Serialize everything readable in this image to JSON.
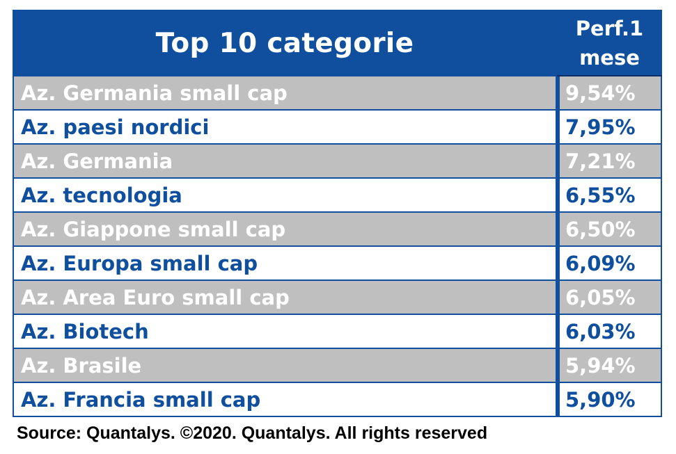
{
  "chart_data": {
    "type": "table",
    "title": "Top 10 categorie",
    "value_header_line1": "Perf.1",
    "value_header_line2": "mese",
    "rows": [
      {
        "category": "Az. Germania small cap",
        "value": "9,54%"
      },
      {
        "category": "Az. paesi nordici",
        "value": "7,95%"
      },
      {
        "category": "Az. Germania",
        "value": "7,21%"
      },
      {
        "category": "Az. tecnologia",
        "value": "6,55%"
      },
      {
        "category": "Az. Giappone small cap",
        "value": "6,50%"
      },
      {
        "category": "Az. Europa small cap",
        "value": "6,09%"
      },
      {
        "category": "Az. Area Euro small cap",
        "value": "6,05%"
      },
      {
        "category": "Az. Biotech",
        "value": "6,03%"
      },
      {
        "category": "Az. Brasile",
        "value": "5,94%"
      },
      {
        "category": "Az. Francia small cap",
        "value": "5,90%"
      }
    ],
    "source": "Source: Quantalys. ©2020. Quantalys. All rights reserved"
  },
  "colors": {
    "header_bg": "#0f4f9e",
    "row_alt_bg": "#c0bfc0",
    "row_text_blue": "#0f4f9e",
    "row_text_white": "#ffffff"
  }
}
